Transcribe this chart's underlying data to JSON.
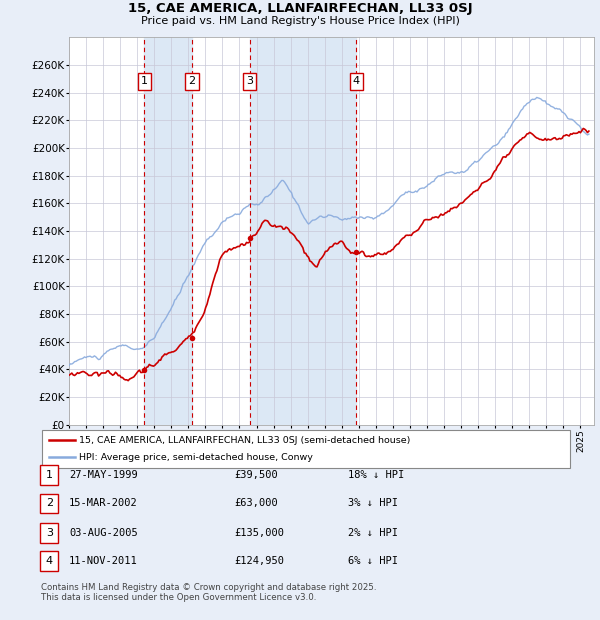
{
  "title": "15, CAE AMERICA, LLANFAIRFECHAN, LL33 0SJ",
  "subtitle": "Price paid vs. HM Land Registry's House Price Index (HPI)",
  "xlim_start": 1995.0,
  "xlim_end": 2025.8,
  "ylim": [
    0,
    280000
  ],
  "yticks": [
    0,
    20000,
    40000,
    60000,
    80000,
    100000,
    120000,
    140000,
    160000,
    180000,
    200000,
    220000,
    240000,
    260000
  ],
  "ytick_labels": [
    "£0",
    "£20K",
    "£40K",
    "£60K",
    "£80K",
    "£100K",
    "£120K",
    "£140K",
    "£160K",
    "£180K",
    "£200K",
    "£220K",
    "£240K",
    "£260K"
  ],
  "bg_color": "#e8eef8",
  "plot_bg_color": "#ffffff",
  "grid_color": "#c8c8d8",
  "hpi_color": "#88aadd",
  "price_color": "#cc0000",
  "dashed_line_color": "#cc0000",
  "shade_color": "#dce8f5",
  "transactions": [
    {
      "num": 1,
      "date": "27-MAY-1999",
      "price": 39500,
      "year": 1999.41,
      "pct": "18%"
    },
    {
      "num": 2,
      "date": "15-MAR-2002",
      "price": 63000,
      "year": 2002.21,
      "pct": "3%"
    },
    {
      "num": 3,
      "date": "03-AUG-2005",
      "price": 135000,
      "year": 2005.59,
      "pct": "2%"
    },
    {
      "num": 4,
      "date": "11-NOV-2011",
      "price": 124950,
      "year": 2011.86,
      "pct": "6%"
    }
  ],
  "legend_label1": "15, CAE AMERICA, LLANFAIRFECHAN, LL33 0SJ (semi-detached house)",
  "legend_label2": "HPI: Average price, semi-detached house, Conwy",
  "footnote": "Contains HM Land Registry data © Crown copyright and database right 2025.\nThis data is licensed under the Open Government Licence v3.0.",
  "table_rows": [
    [
      "1",
      "27-MAY-1999",
      "£39,500",
      "18% ↓ HPI"
    ],
    [
      "2",
      "15-MAR-2002",
      "£63,000",
      "3% ↓ HPI"
    ],
    [
      "3",
      "03-AUG-2005",
      "£135,000",
      "2% ↓ HPI"
    ],
    [
      "4",
      "11-NOV-2011",
      "£124,950",
      "6% ↓ HPI"
    ]
  ]
}
